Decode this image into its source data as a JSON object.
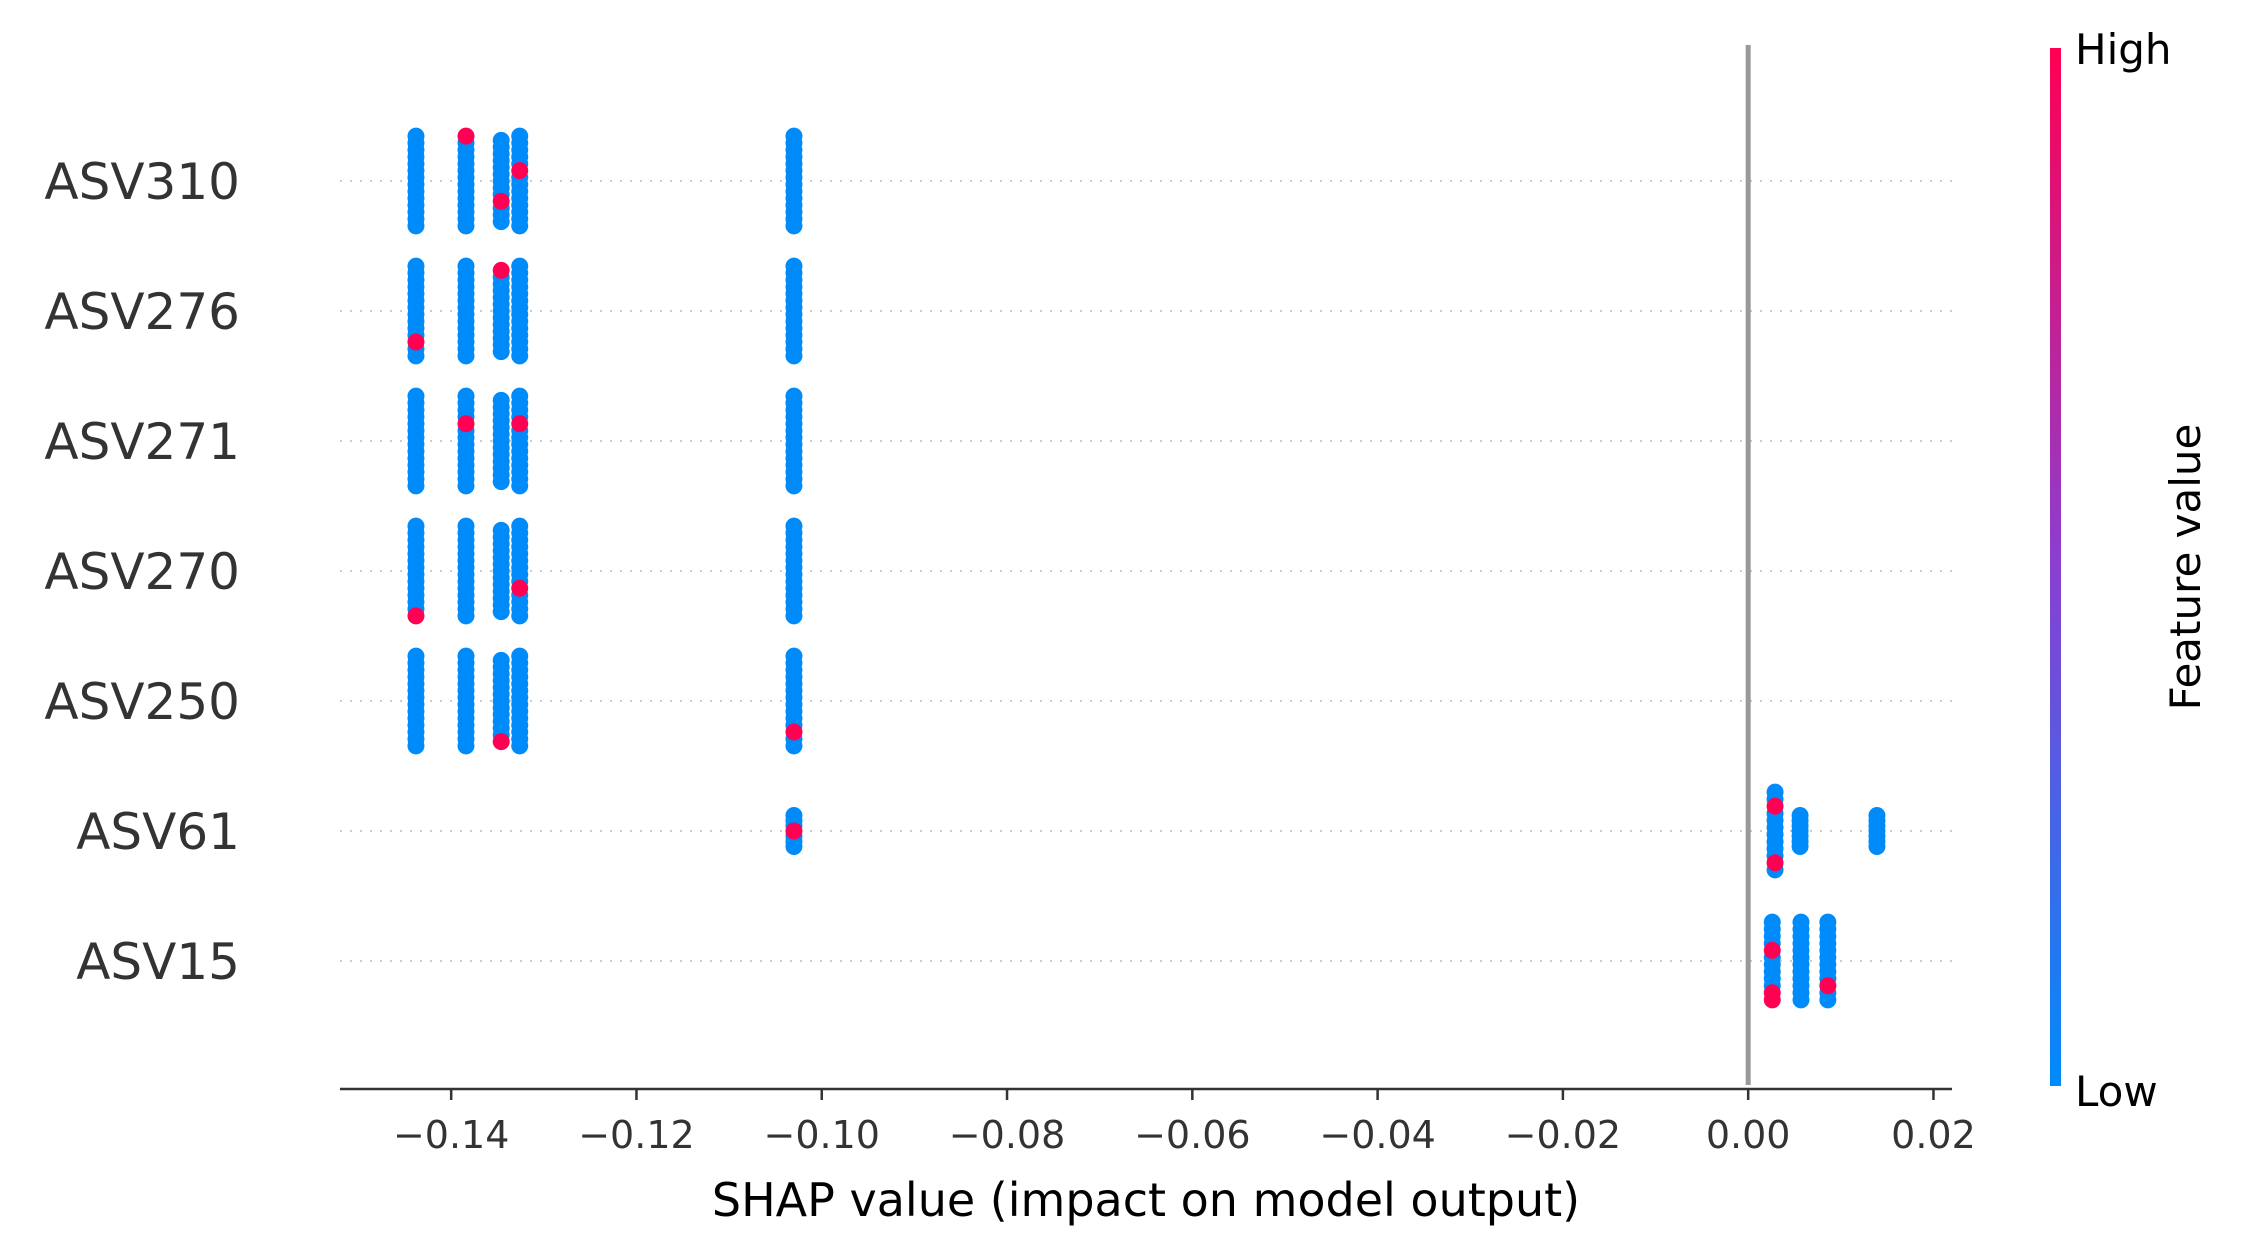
{
  "chart_data": {
    "type": "scatter",
    "title": "",
    "xlabel": "SHAP value (impact on model output)",
    "ylabel": "",
    "xlim": [
      -0.152,
      0.022
    ],
    "xticks": [
      -0.14,
      -0.12,
      -0.1,
      -0.08,
      -0.06,
      -0.04,
      -0.02,
      0.0,
      0.02
    ],
    "xtick_labels": [
      "−0.14",
      "−0.12",
      "−0.10",
      "−0.08",
      "−0.06",
      "−0.04",
      "−0.02",
      "0.00",
      "0.02"
    ],
    "grid": "horizontal dotted",
    "zero_line": 0.0,
    "colors": {
      "low": "#008bfb",
      "high": "#ff0052",
      "mid": "#8a3fd1",
      "zero_line": "#999999",
      "axis": "#333333",
      "grid": "#cccccc"
    },
    "colorbar": {
      "label": "Feature value",
      "high_label": "High",
      "low_label": "Low"
    },
    "features": [
      {
        "name": "ASV310",
        "clusters": [
          {
            "x": -0.1438,
            "n": 14,
            "spread": 0.75,
            "high": []
          },
          {
            "x": -0.1384,
            "n": 14,
            "spread": 0.75,
            "high": [
              0
            ]
          },
          {
            "x": -0.1346,
            "n": 13,
            "spread": 0.68,
            "high": [
              9
            ]
          },
          {
            "x": -0.1326,
            "n": 14,
            "spread": 0.75,
            "high": [
              5
            ]
          },
          {
            "x": -0.103,
            "n": 14,
            "spread": 0.75,
            "high": []
          }
        ]
      },
      {
        "name": "ASV276",
        "clusters": [
          {
            "x": -0.1438,
            "n": 14,
            "spread": 0.75,
            "high": [
              11
            ]
          },
          {
            "x": -0.1384,
            "n": 14,
            "spread": 0.75,
            "high": []
          },
          {
            "x": -0.1346,
            "n": 13,
            "spread": 0.68,
            "high": [
              0
            ]
          },
          {
            "x": -0.1326,
            "n": 14,
            "spread": 0.75,
            "high": []
          },
          {
            "x": -0.103,
            "n": 14,
            "spread": 0.75,
            "high": []
          }
        ]
      },
      {
        "name": "ASV271",
        "clusters": [
          {
            "x": -0.1438,
            "n": 14,
            "spread": 0.75,
            "high": []
          },
          {
            "x": -0.1384,
            "n": 14,
            "spread": 0.75,
            "high": [
              4
            ]
          },
          {
            "x": -0.1346,
            "n": 13,
            "spread": 0.68,
            "high": []
          },
          {
            "x": -0.1326,
            "n": 14,
            "spread": 0.75,
            "high": [
              4
            ]
          },
          {
            "x": -0.103,
            "n": 14,
            "spread": 0.75,
            "high": []
          }
        ]
      },
      {
        "name": "ASV270",
        "clusters": [
          {
            "x": -0.1438,
            "n": 14,
            "spread": 0.75,
            "high": [
              13
            ]
          },
          {
            "x": -0.1384,
            "n": 14,
            "spread": 0.75,
            "high": []
          },
          {
            "x": -0.1346,
            "n": 13,
            "spread": 0.68,
            "high": []
          },
          {
            "x": -0.1326,
            "n": 14,
            "spread": 0.75,
            "high": [
              9
            ]
          },
          {
            "x": -0.103,
            "n": 14,
            "spread": 0.75,
            "high": []
          }
        ]
      },
      {
        "name": "ASV250",
        "clusters": [
          {
            "x": -0.1438,
            "n": 14,
            "spread": 0.75,
            "high": []
          },
          {
            "x": -0.1384,
            "n": 14,
            "spread": 0.75,
            "high": []
          },
          {
            "x": -0.1346,
            "n": 13,
            "spread": 0.68,
            "high": [
              12
            ]
          },
          {
            "x": -0.1326,
            "n": 14,
            "spread": 0.75,
            "high": []
          },
          {
            "x": -0.103,
            "n": 14,
            "spread": 0.75,
            "high": [
              11
            ]
          }
        ]
      },
      {
        "name": "ASV61",
        "clusters": [
          {
            "x": -0.103,
            "n": 7,
            "spread": 0.26,
            "high": [
              3
            ]
          },
          {
            "x": 0.0029,
            "n": 12,
            "spread": 0.65,
            "high": [
              2,
              10
            ]
          },
          {
            "x": 0.0056,
            "n": 7,
            "spread": 0.26,
            "high": []
          },
          {
            "x": 0.0139,
            "n": 7,
            "spread": 0.26,
            "high": []
          }
        ]
      },
      {
        "name": "ASV15",
        "clusters": [
          {
            "x": 0.0026,
            "n": 12,
            "spread": 0.65,
            "high": [
              4,
              10,
              11
            ]
          },
          {
            "x": 0.0057,
            "n": 12,
            "spread": 0.65,
            "high": []
          },
          {
            "x": 0.0086,
            "n": 12,
            "spread": 0.65,
            "high": [
              9
            ]
          }
        ]
      }
    ]
  }
}
